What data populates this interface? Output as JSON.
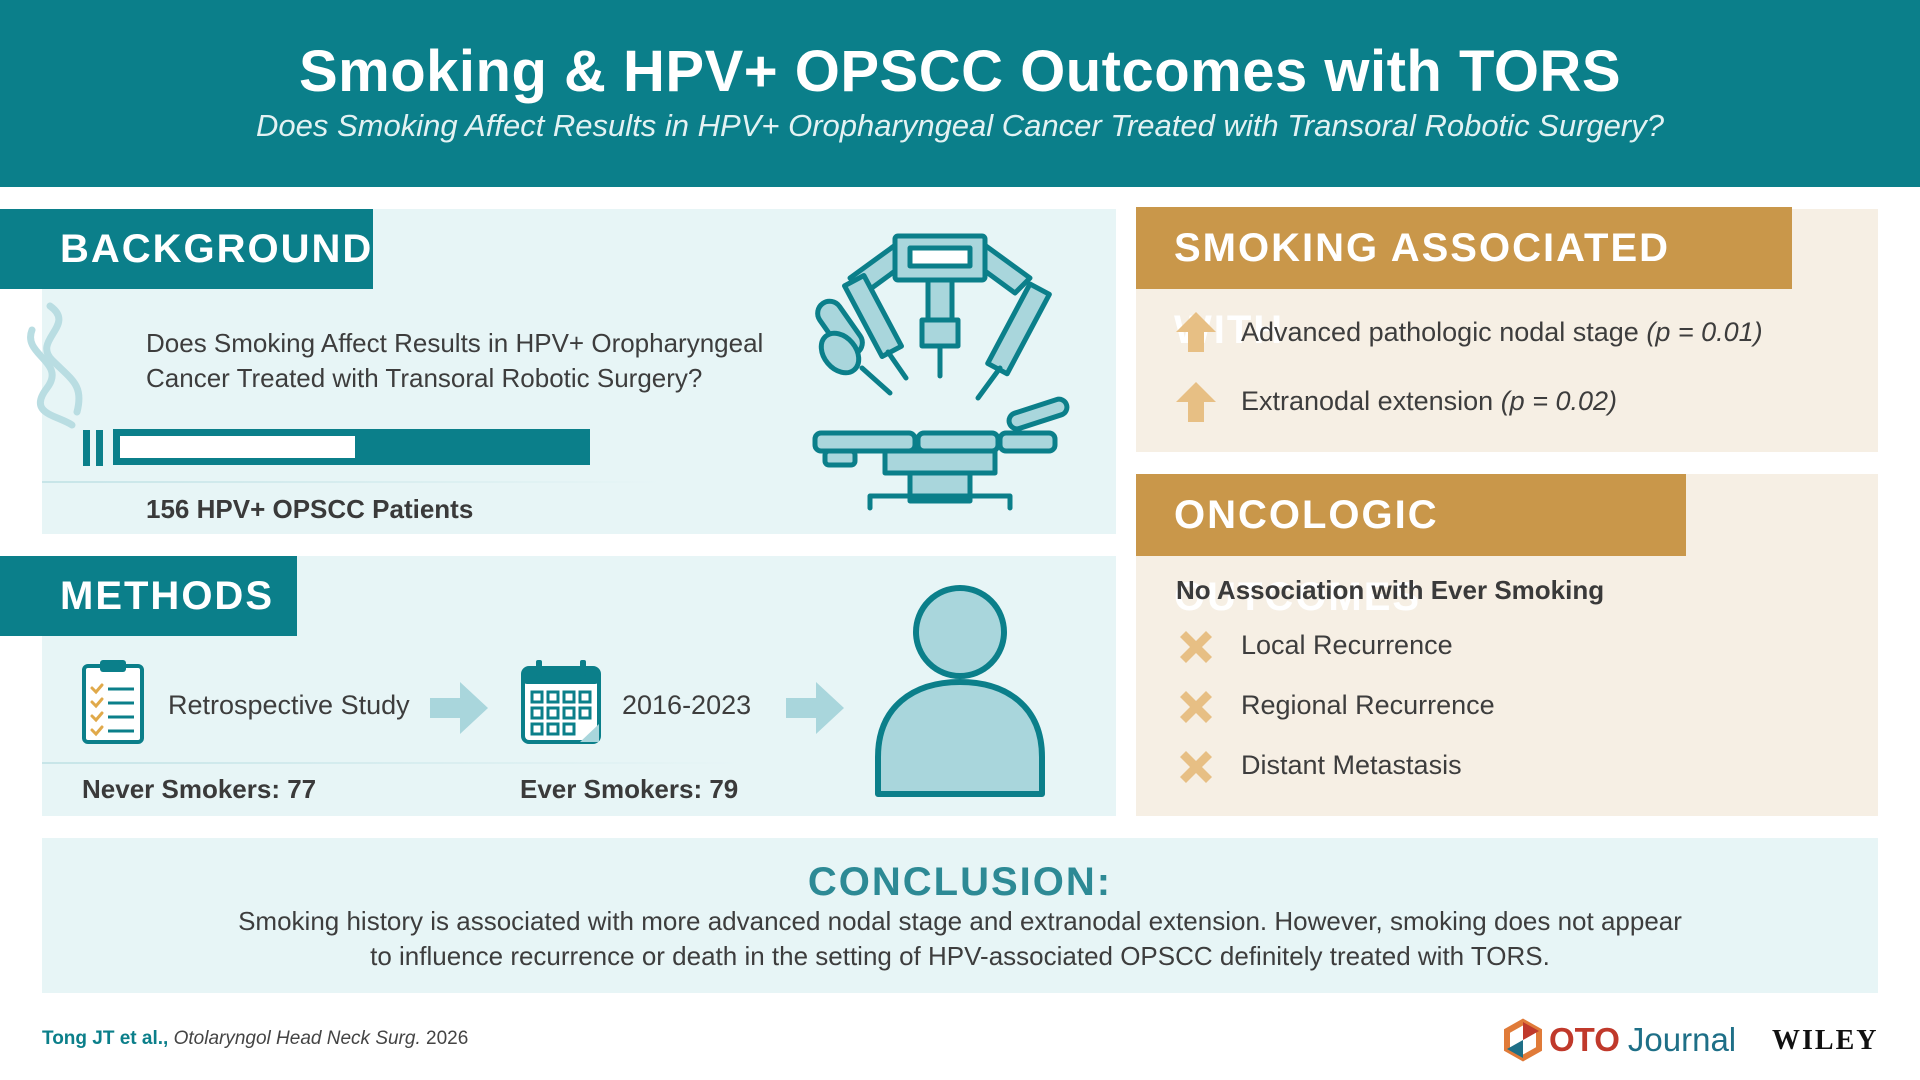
{
  "header": {
    "title": "Smoking & HPV+ OPSCC Outcomes with TORS",
    "subtitle": "Does Smoking Affect Results in HPV+ Oropharyngeal Cancer Treated with Transoral Robotic Surgery?"
  },
  "background": {
    "heading": "BACKGROUND",
    "question": "Does Smoking Affect Results in HPV+ Oropharyngeal Cancer Treated with Transoral Robotic Surgery?",
    "patients": "156 HPV+ OPSCC Patients",
    "icons": [
      "cigarette-icon",
      "surgical-robot-icon"
    ]
  },
  "methods": {
    "heading": "METHODS",
    "step1": "Retrospective Study",
    "step2": "2016-2023",
    "never_smokers": "Never Smokers: 77",
    "ever_smokers": "Ever Smokers: 79",
    "icons": [
      "clipboard-icon",
      "arrow-right-icon",
      "calendar-icon",
      "person-icon"
    ]
  },
  "smoking_associated": {
    "heading": "SMOKING ASSOCIATED WITH",
    "items": [
      {
        "label": "Advanced pathologic nodal stage",
        "p": "(p = 0.01)"
      },
      {
        "label": "Extranodal extension",
        "p": "(p = 0.02)"
      }
    ],
    "icon": "arrow-up-icon"
  },
  "oncologic_outcomes": {
    "heading": "ONCOLOGIC OUTCOMES",
    "subheading": "No Association with Ever Smoking",
    "items": [
      "Local Recurrence",
      "Regional Recurrence",
      "Distant Metastasis"
    ],
    "icon": "x-mark-icon"
  },
  "conclusion": {
    "heading": "CONCLUSION:",
    "line1": "Smoking history is associated with more advanced nodal stage and extranodal extension. However, smoking does not appear",
    "line2": "to influence recurrence or death in the setting of HPV-associated OPSCC definitely treated with TORS."
  },
  "footer": {
    "authors": "Tong JT et al.,",
    "journal": "Otolaryngol Head Neck Surg.",
    "year": "2026",
    "oto_bold": "OTO",
    "oto_light": "Journal",
    "publisher": "WILEY"
  },
  "colors": {
    "teal": "#0b7f8a",
    "gold": "#c9974a",
    "light_teal_panel": "#e7f5f6",
    "beige_panel": "#f6efe4",
    "icon_light": "#a9d6dc"
  }
}
